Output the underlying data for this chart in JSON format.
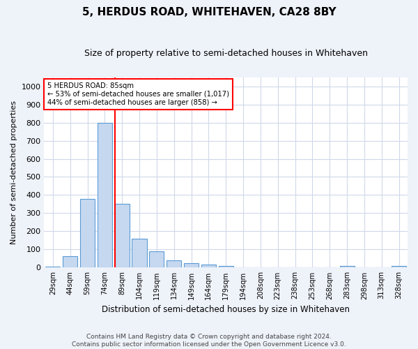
{
  "title": "5, HERDUS ROAD, WHITEHAVEN, CA28 8BY",
  "subtitle": "Size of property relative to semi-detached houses in Whitehaven",
  "xlabel": "Distribution of semi-detached houses by size in Whitehaven",
  "ylabel": "Number of semi-detached properties",
  "categories": [
    "29sqm",
    "44sqm",
    "59sqm",
    "74sqm",
    "89sqm",
    "104sqm",
    "119sqm",
    "134sqm",
    "149sqm",
    "164sqm",
    "179sqm",
    "194sqm",
    "208sqm",
    "223sqm",
    "238sqm",
    "253sqm",
    "268sqm",
    "283sqm",
    "298sqm",
    "313sqm",
    "328sqm"
  ],
  "values": [
    5,
    65,
    380,
    800,
    350,
    160,
    90,
    42,
    25,
    18,
    10,
    2,
    2,
    2,
    2,
    2,
    2,
    10,
    2,
    2,
    10
  ],
  "bar_color": "#c5d8f0",
  "bar_edge_color": "#5b9bd5",
  "property_line_index": 4,
  "annotation_line1": "5 HERDUS ROAD: 85sqm",
  "annotation_line2": "← 53% of semi-detached houses are smaller (1,017)",
  "annotation_line3": "44% of semi-detached houses are larger (858) →",
  "footer_line1": "Contains HM Land Registry data © Crown copyright and database right 2024.",
  "footer_line2": "Contains public sector information licensed under the Open Government Licence v3.0.",
  "ylim": [
    0,
    1050
  ],
  "bg_color": "#eef2f9",
  "plot_bg_color": "#ffffff",
  "grid_color": "#d0d8e8",
  "title_fontsize": 11,
  "subtitle_fontsize": 9
}
